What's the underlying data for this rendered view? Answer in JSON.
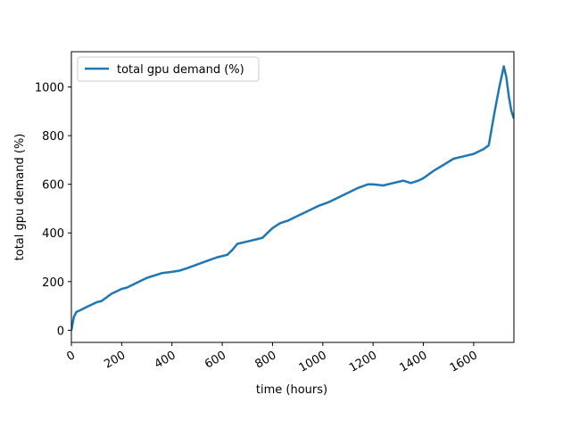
{
  "chart_data": {
    "type": "line",
    "title": "",
    "xlabel": "time (hours)",
    "ylabel": "total gpu demand (%)",
    "xlim": [
      0,
      1760
    ],
    "ylim": [
      -50,
      1145
    ],
    "x_ticks": [
      0,
      200,
      400,
      600,
      800,
      1000,
      1200,
      1400,
      1600
    ],
    "x_tick_labels": [
      "0",
      "200",
      "400",
      "600",
      "800",
      "1000",
      "1200",
      "1400",
      "1600"
    ],
    "y_ticks": [
      0,
      200,
      400,
      600,
      800,
      1000
    ],
    "y_tick_labels": [
      "0",
      "200",
      "400",
      "600",
      "800",
      "1000"
    ],
    "grid": false,
    "legend": {
      "position": "top-left",
      "entries": [
        "total gpu demand (%)"
      ]
    },
    "series": [
      {
        "name": "total gpu demand (%)",
        "color": "#1f77b4",
        "x": [
          0,
          10,
          20,
          40,
          60,
          80,
          100,
          120,
          140,
          160,
          180,
          200,
          220,
          250,
          280,
          300,
          330,
          360,
          400,
          430,
          460,
          500,
          540,
          580,
          620,
          640,
          660,
          700,
          740,
          760,
          780,
          800,
          830,
          860,
          900,
          940,
          980,
          1020,
          1060,
          1100,
          1140,
          1180,
          1200,
          1240,
          1280,
          1320,
          1350,
          1380,
          1400,
          1440,
          1480,
          1520,
          1560,
          1600,
          1640,
          1660,
          1680,
          1700,
          1720,
          1730,
          1740,
          1750,
          1760
        ],
        "y": [
          0,
          55,
          75,
          85,
          95,
          105,
          115,
          120,
          135,
          150,
          160,
          170,
          175,
          190,
          205,
          215,
          225,
          235,
          240,
          245,
          255,
          270,
          285,
          300,
          310,
          330,
          355,
          365,
          375,
          380,
          400,
          420,
          440,
          450,
          470,
          490,
          510,
          525,
          545,
          565,
          585,
          600,
          600,
          595,
          605,
          615,
          605,
          615,
          625,
          655,
          680,
          705,
          715,
          725,
          745,
          760,
          880,
          990,
          1085,
          1040,
          960,
          900,
          870
        ]
      }
    ]
  }
}
